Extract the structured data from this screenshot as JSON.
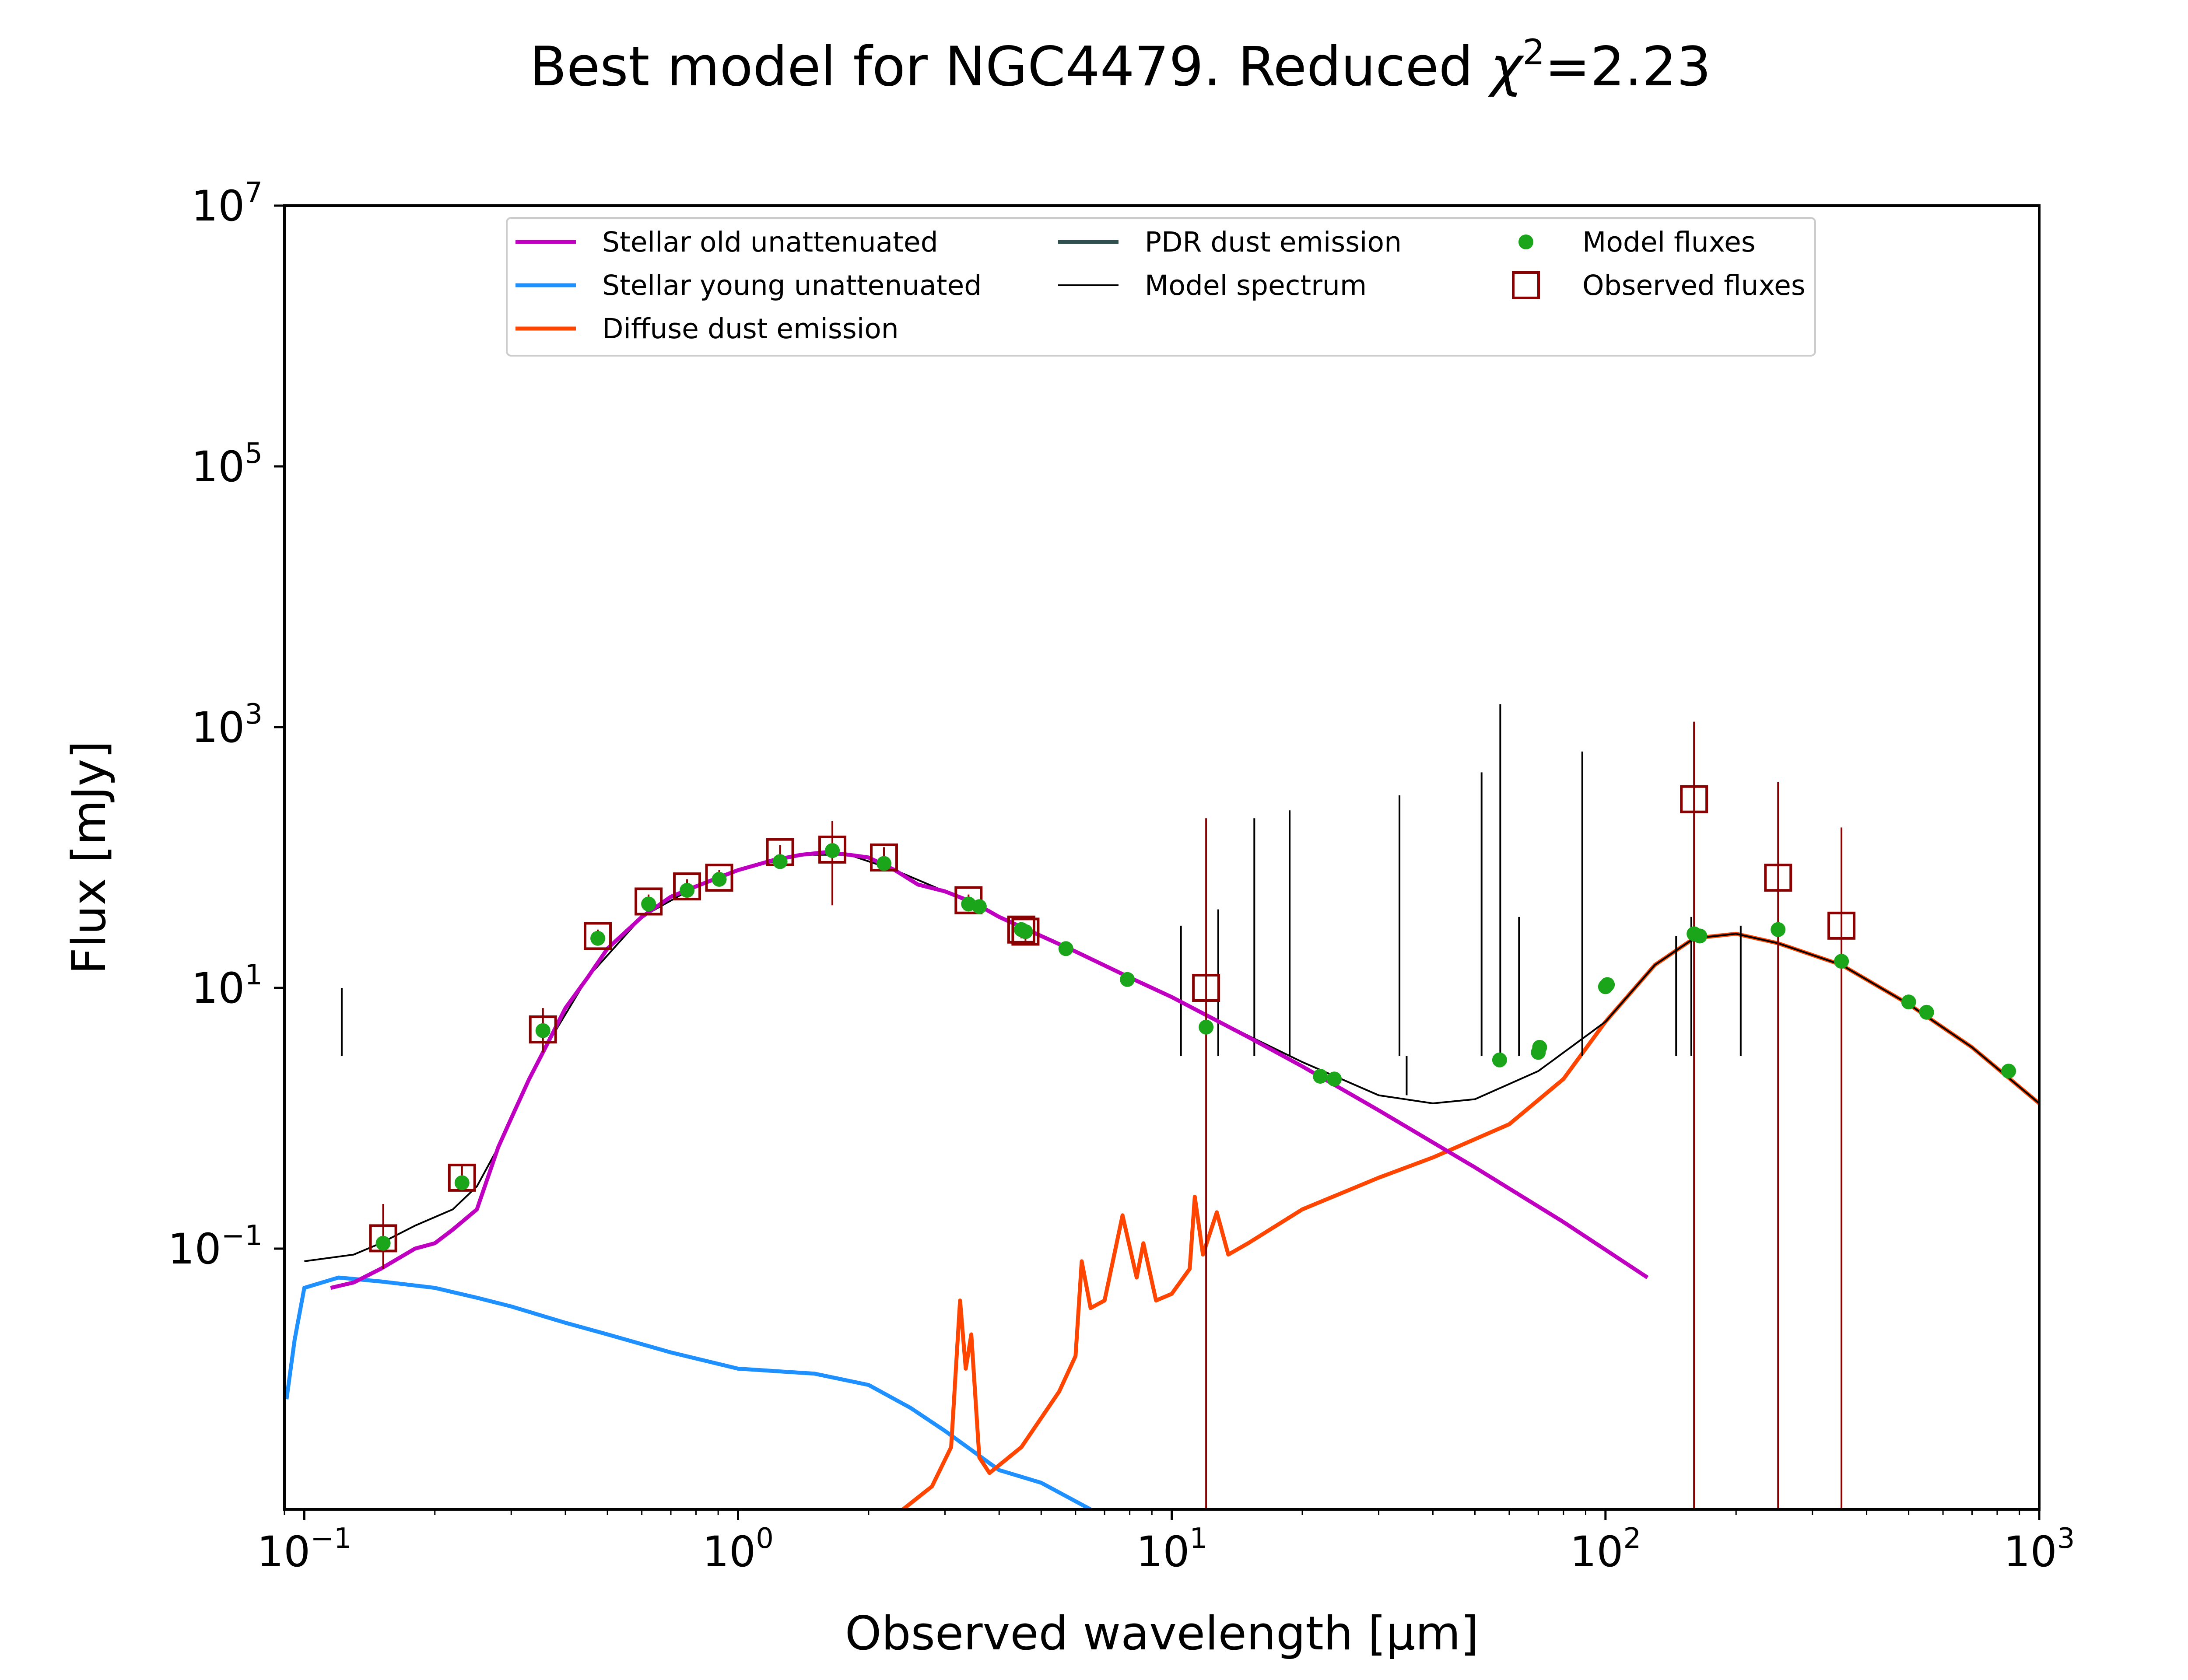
{
  "chart_data": {
    "type": "line",
    "title": "Best model for NGC4479. Reduced χ²=2.23",
    "title_parts": {
      "prefix": "Best model for NGC4479. Reduced ",
      "symbol": "χ",
      "superscript": "2",
      "suffix": "=2.23"
    },
    "xlabel": "Observed wavelength [μm]",
    "ylabel": "Flux [mJy]",
    "xscale": "log",
    "yscale": "log",
    "xlim": [
      0.09,
      1000
    ],
    "ylim": [
      0.001,
      10000000
    ],
    "grid": false,
    "legend_position": "top-center",
    "x_ticks": [
      {
        "base": "10",
        "exp": "−1",
        "value": 0.1
      },
      {
        "base": "10",
        "exp": "0",
        "value": 1
      },
      {
        "base": "10",
        "exp": "1",
        "value": 10
      },
      {
        "base": "10",
        "exp": "2",
        "value": 100
      },
      {
        "base": "10",
        "exp": "3",
        "value": 1000
      }
    ],
    "y_ticks": [
      {
        "base": "10",
        "exp": "−1",
        "value": 0.1
      },
      {
        "base": "10",
        "exp": "1",
        "value": 10
      },
      {
        "base": "10",
        "exp": "3",
        "value": 1000
      },
      {
        "base": "10",
        "exp": "5",
        "value": 100000
      },
      {
        "base": "10",
        "exp": "7",
        "value": 10000000
      }
    ],
    "legend": [
      {
        "label": "Stellar old unattenuated",
        "color": "#c000c0",
        "kind": "line"
      },
      {
        "label": "Stellar young unattenuated",
        "color": "#1e90ff",
        "kind": "line"
      },
      {
        "label": "Diffuse dust emission",
        "color": "#ff4500",
        "kind": "line"
      },
      {
        "label": "PDR dust emission",
        "color": "#2f4f4f",
        "kind": "line"
      },
      {
        "label": "Model spectrum",
        "color": "#000000",
        "kind": "thinline"
      },
      {
        "label": "Model fluxes",
        "color": "#1aa51a",
        "kind": "dot"
      },
      {
        "label": "Observed fluxes",
        "color": "#8b0000",
        "kind": "square"
      }
    ],
    "series": [
      {
        "name": "Stellar old unattenuated",
        "color": "#c000c0",
        "points": [
          [
            0.115,
            0.05
          ],
          [
            0.13,
            0.055
          ],
          [
            0.15,
            0.07
          ],
          [
            0.18,
            0.1
          ],
          [
            0.2,
            0.11
          ],
          [
            0.22,
            0.14
          ],
          [
            0.25,
            0.2
          ],
          [
            0.28,
            0.6
          ],
          [
            0.3,
            1.0
          ],
          [
            0.33,
            2.0
          ],
          [
            0.36,
            3.5
          ],
          [
            0.4,
            7
          ],
          [
            0.45,
            12
          ],
          [
            0.5,
            20
          ],
          [
            0.6,
            35
          ],
          [
            0.7,
            50
          ],
          [
            0.8,
            60
          ],
          [
            0.9,
            70
          ],
          [
            1.0,
            80
          ],
          [
            1.2,
            95
          ],
          [
            1.4,
            105
          ],
          [
            1.6,
            110
          ],
          [
            1.8,
            105
          ],
          [
            2.0,
            100
          ],
          [
            2.3,
            80
          ],
          [
            2.6,
            62
          ],
          [
            3.0,
            55
          ],
          [
            3.5,
            45
          ],
          [
            4.0,
            35
          ],
          [
            5.0,
            25
          ],
          [
            6.0,
            19
          ],
          [
            8.0,
            12
          ],
          [
            10.0,
            8.5
          ],
          [
            15.0,
            4.2
          ],
          [
            20.0,
            2.5
          ],
          [
            30.0,
            1.15
          ],
          [
            50.0,
            0.42
          ],
          [
            80.0,
            0.16
          ],
          [
            125.0,
            0.06
          ]
        ]
      },
      {
        "name": "Stellar young unattenuated",
        "color": "#1e90ff",
        "points": [
          [
            0.091,
            0.007
          ],
          [
            0.095,
            0.02
          ],
          [
            0.1,
            0.05
          ],
          [
            0.12,
            0.06
          ],
          [
            0.15,
            0.056
          ],
          [
            0.2,
            0.05
          ],
          [
            0.25,
            0.042
          ],
          [
            0.3,
            0.036
          ],
          [
            0.4,
            0.027
          ],
          [
            0.5,
            0.022
          ],
          [
            0.7,
            0.016
          ],
          [
            1.0,
            0.012
          ],
          [
            1.5,
            0.011
          ],
          [
            2.0,
            0.009
          ],
          [
            2.5,
            0.006
          ],
          [
            3.0,
            0.004
          ],
          [
            4.0,
            0.002
          ],
          [
            5.0,
            0.0016
          ],
          [
            6.5,
            0.001
          ]
        ]
      },
      {
        "name": "Diffuse dust emission",
        "color": "#ff4500",
        "points": [
          [
            2.4,
            0.001
          ],
          [
            2.8,
            0.0015
          ],
          [
            3.1,
            0.003
          ],
          [
            3.25,
            0.04
          ],
          [
            3.35,
            0.012
          ],
          [
            3.45,
            0.022
          ],
          [
            3.6,
            0.0025
          ],
          [
            3.8,
            0.0019
          ],
          [
            4.5,
            0.003
          ],
          [
            5.5,
            0.008
          ],
          [
            6.0,
            0.015
          ],
          [
            6.2,
            0.08
          ],
          [
            6.5,
            0.035
          ],
          [
            7.0,
            0.04
          ],
          [
            7.7,
            0.18
          ],
          [
            8.3,
            0.06
          ],
          [
            8.6,
            0.11
          ],
          [
            9.2,
            0.04
          ],
          [
            10.0,
            0.045
          ],
          [
            11.0,
            0.07
          ],
          [
            11.3,
            0.25
          ],
          [
            11.8,
            0.09
          ],
          [
            12.7,
            0.19
          ],
          [
            13.5,
            0.09
          ],
          [
            15.0,
            0.11
          ],
          [
            20.0,
            0.2
          ],
          [
            30.0,
            0.35
          ],
          [
            40.0,
            0.5
          ],
          [
            60.0,
            0.9
          ],
          [
            80.0,
            2.0
          ],
          [
            100.0,
            5.5
          ],
          [
            130.0,
            15
          ],
          [
            160.0,
            24
          ],
          [
            200.0,
            26
          ],
          [
            250.0,
            22
          ],
          [
            350.0,
            15
          ],
          [
            500.0,
            7.5
          ],
          [
            700.0,
            3.5
          ],
          [
            1000.0,
            1.3
          ]
        ]
      },
      {
        "name": "Model spectrum",
        "color": "#000000",
        "points": [
          [
            0.1,
            0.08
          ],
          [
            0.13,
            0.09
          ],
          [
            0.15,
            0.11
          ],
          [
            0.18,
            0.15
          ],
          [
            0.22,
            0.2
          ],
          [
            0.25,
            0.3
          ],
          [
            0.28,
            0.6
          ],
          [
            0.3,
            1.0
          ],
          [
            0.36,
            3.5
          ],
          [
            0.45,
            12
          ],
          [
            0.6,
            35
          ],
          [
            0.8,
            60
          ],
          [
            1.0,
            80
          ],
          [
            1.4,
            105
          ],
          [
            1.8,
            105
          ],
          [
            2.3,
            80
          ],
          [
            3.0,
            55
          ],
          [
            4.0,
            35
          ],
          [
            6.0,
            19
          ],
          [
            8.0,
            12
          ],
          [
            10.0,
            8.5
          ],
          [
            15.0,
            4.3
          ],
          [
            20.0,
            2.7
          ],
          [
            30.0,
            1.5
          ],
          [
            40.0,
            1.3
          ],
          [
            50.0,
            1.4
          ],
          [
            70.0,
            2.3
          ],
          [
            100.0,
            5.5
          ],
          [
            130.0,
            15
          ],
          [
            160.0,
            24
          ],
          [
            200.0,
            26
          ],
          [
            250.0,
            22
          ],
          [
            350.0,
            15
          ],
          [
            500.0,
            7.5
          ],
          [
            700.0,
            3.5
          ],
          [
            1000.0,
            1.3
          ]
        ],
        "emission_lines": [
          [
            0.122,
            10
          ],
          [
            10.5,
            30
          ],
          [
            12.8,
            40
          ],
          [
            15.5,
            200
          ],
          [
            18.7,
            230
          ],
          [
            33.5,
            300
          ],
          [
            34.8,
            1.5
          ],
          [
            51.8,
            450
          ],
          [
            57.2,
            1500
          ],
          [
            63.2,
            35
          ],
          [
            88.4,
            650
          ],
          [
            145.5,
            25
          ],
          [
            157.7,
            35
          ],
          [
            205.0,
            30
          ]
        ]
      }
    ],
    "model_fluxes": [
      [
        0.152,
        0.11
      ],
      [
        0.231,
        0.32
      ],
      [
        0.355,
        4.7
      ],
      [
        0.475,
        24
      ],
      [
        0.622,
        44
      ],
      [
        0.763,
        56
      ],
      [
        0.905,
        68
      ],
      [
        1.25,
        93
      ],
      [
        1.65,
        113
      ],
      [
        2.17,
        90
      ],
      [
        3.4,
        44
      ],
      [
        3.6,
        42
      ],
      [
        4.5,
        28
      ],
      [
        4.6,
        27
      ],
      [
        5.7,
        20
      ],
      [
        7.9,
        11.6
      ],
      [
        12.0,
        5.0
      ],
      [
        22.0,
        2.1
      ],
      [
        23.7,
        2.0
      ],
      [
        57.0,
        2.8
      ],
      [
        70.0,
        3.2
      ],
      [
        70.5,
        3.5
      ],
      [
        100.0,
        10.2
      ],
      [
        101.0,
        10.6
      ],
      [
        160.0,
        26
      ],
      [
        165.0,
        25
      ],
      [
        250.0,
        28
      ],
      [
        350.0,
        16
      ],
      [
        500.0,
        7.8
      ],
      [
        550.0,
        6.5
      ],
      [
        850.0,
        2.3
      ]
    ],
    "observed_fluxes": [
      {
        "x": 0.152,
        "y": 0.12,
        "ylo": 0.07,
        "yhi": 0.22
      },
      {
        "x": 0.231,
        "y": 0.35,
        "ylo": 0.28,
        "yhi": 0.44
      },
      {
        "x": 0.355,
        "y": 4.8,
        "ylo": 3.2,
        "yhi": 7.0
      },
      {
        "x": 0.475,
        "y": 25,
        "ylo": 22,
        "yhi": 28
      },
      {
        "x": 0.622,
        "y": 46,
        "ylo": 40,
        "yhi": 52
      },
      {
        "x": 0.763,
        "y": 60,
        "ylo": 52,
        "yhi": 68
      },
      {
        "x": 0.905,
        "y": 70,
        "ylo": 60,
        "yhi": 80
      },
      {
        "x": 1.25,
        "y": 110,
        "ylo": 95,
        "yhi": 125
      },
      {
        "x": 1.65,
        "y": 115,
        "ylo": 43,
        "yhi": 190
      },
      {
        "x": 2.17,
        "y": 100,
        "ylo": 80,
        "yhi": 120
      },
      {
        "x": 3.4,
        "y": 47,
        "ylo": 42,
        "yhi": 52
      },
      {
        "x": 4.5,
        "y": 28,
        "ylo": 24,
        "yhi": 32
      },
      {
        "x": 4.6,
        "y": 27,
        "ylo": 23,
        "yhi": 31
      },
      {
        "x": 12.0,
        "y": 10,
        "ylo": 0.001,
        "yhi": 200
      },
      {
        "x": 160.0,
        "y": 280,
        "ylo": 0.001,
        "yhi": 1100
      },
      {
        "x": 250.0,
        "y": 70,
        "ylo": 0.001,
        "yhi": 380
      },
      {
        "x": 350.0,
        "y": 30,
        "ylo": 0.001,
        "yhi": 170
      }
    ]
  }
}
